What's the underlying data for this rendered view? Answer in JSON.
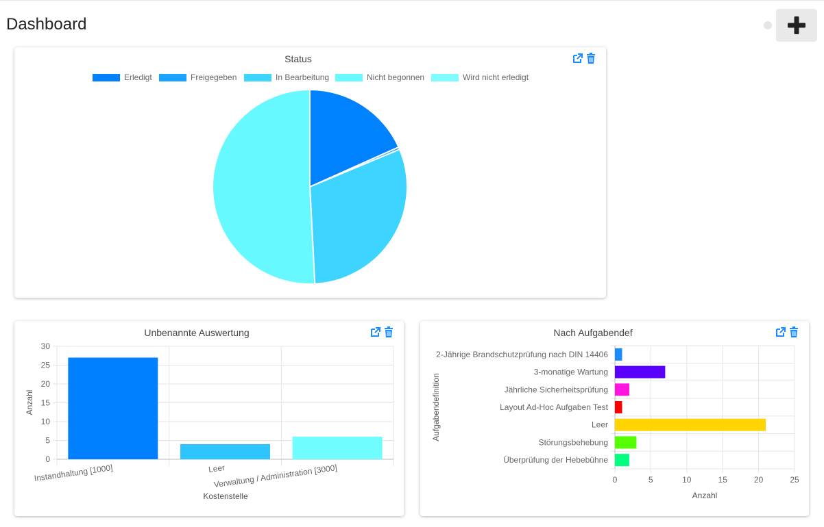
{
  "page": {
    "title": "Dashboard"
  },
  "header": {
    "add_icon": "plus-icon",
    "status_icon": "status-dot"
  },
  "widgets": {
    "status": {
      "title": "Status",
      "icons": [
        "external-link-icon",
        "trash-icon"
      ]
    },
    "unbenannte": {
      "title": "Unbenannte Auswertung",
      "icons": [
        "external-link-icon",
        "trash-icon"
      ]
    },
    "aufgabendef": {
      "title": "Nach Aufgabendef",
      "icons": [
        "external-link-icon",
        "trash-icon"
      ]
    }
  },
  "colors": {
    "accent": "#1a8cff"
  },
  "chart_data": [
    {
      "type": "pie",
      "title": "Status",
      "legend": "top",
      "series": [
        {
          "name": "Erledigt",
          "value": 9,
          "color": "#0082ff"
        },
        {
          "name": "Freigegeben",
          "value": 0.2,
          "color": "#1aa3ff"
        },
        {
          "name": "In Bearbeitung",
          "value": 15,
          "color": "#3dd5ff"
        },
        {
          "name": "Nicht begonnen",
          "value": 25,
          "color": "#66f9ff"
        },
        {
          "name": "Wird nicht erledigt",
          "value": 0,
          "color": "#80fcff"
        }
      ]
    },
    {
      "type": "bar",
      "title": "Unbenannte Auswertung",
      "categories": [
        "Instandhaltung [1000]",
        "Leer",
        "Verwaltung / Administration [3000]"
      ],
      "values": [
        27,
        4,
        6
      ],
      "colors": [
        "#0080ff",
        "#2ec4ff",
        "#70fdff"
      ],
      "xlabel": "Kostenstelle",
      "ylabel": "Anzahl",
      "ylim": [
        0,
        30
      ],
      "yticks": [
        0,
        5,
        10,
        15,
        20,
        25,
        30
      ],
      "grid": true
    },
    {
      "type": "bar",
      "orientation": "horizontal",
      "title": "Nach Aufgabendef",
      "categories": [
        "2-Jährige Brandschutzprüfung nach DIN 14406",
        "3-monatige Wartung",
        "Jährliche Sicherheitsprüfung",
        "Layout Ad-Hoc Aufgaben Test",
        "Leer",
        "Störungsbehebung",
        "Überprüfung der Hebebühne"
      ],
      "values": [
        1,
        7,
        2,
        1,
        21,
        3,
        2
      ],
      "colors": [
        "#1a8cff",
        "#5a00ff",
        "#ff14e0",
        "#ff0000",
        "#ffd400",
        "#55ff00",
        "#00ff80"
      ],
      "xlabel": "Anzahl",
      "ylabel": "Aufgabendefinition",
      "xlim": [
        0,
        25
      ],
      "xticks": [
        0,
        5,
        10,
        15,
        20,
        25
      ],
      "grid": true
    }
  ]
}
